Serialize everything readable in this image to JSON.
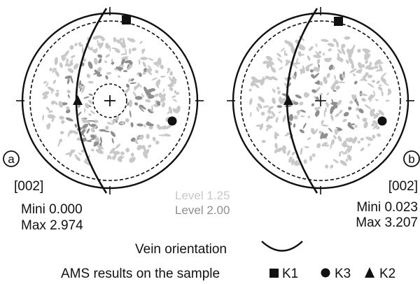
{
  "panels": [
    {
      "id": "a",
      "label": "a",
      "plane": "[002]",
      "mini": "Mini 0.000",
      "max": "Max 2.974"
    },
    {
      "id": "b",
      "label": "b",
      "plane": "[002]",
      "mini": "Mini 0.023",
      "max": "Max 3.207"
    }
  ],
  "levels": [
    {
      "text": "Level 1.25",
      "color": "#c8c8c8"
    },
    {
      "text": "Level 2.00",
      "color": "#8f8f8f"
    }
  ],
  "legend": {
    "vein_label": "Vein orientation",
    "ams_label": "AMS results on the sample",
    "k1": "K1",
    "k3": "K3",
    "k2": "K2",
    "k1_symbol": "square",
    "k3_symbol": "circle",
    "k2_symbol": "triangle"
  },
  "colors": {
    "level_low": "#c8c8c8",
    "level_high": "#8f8f8f",
    "ink": "#111111"
  }
}
